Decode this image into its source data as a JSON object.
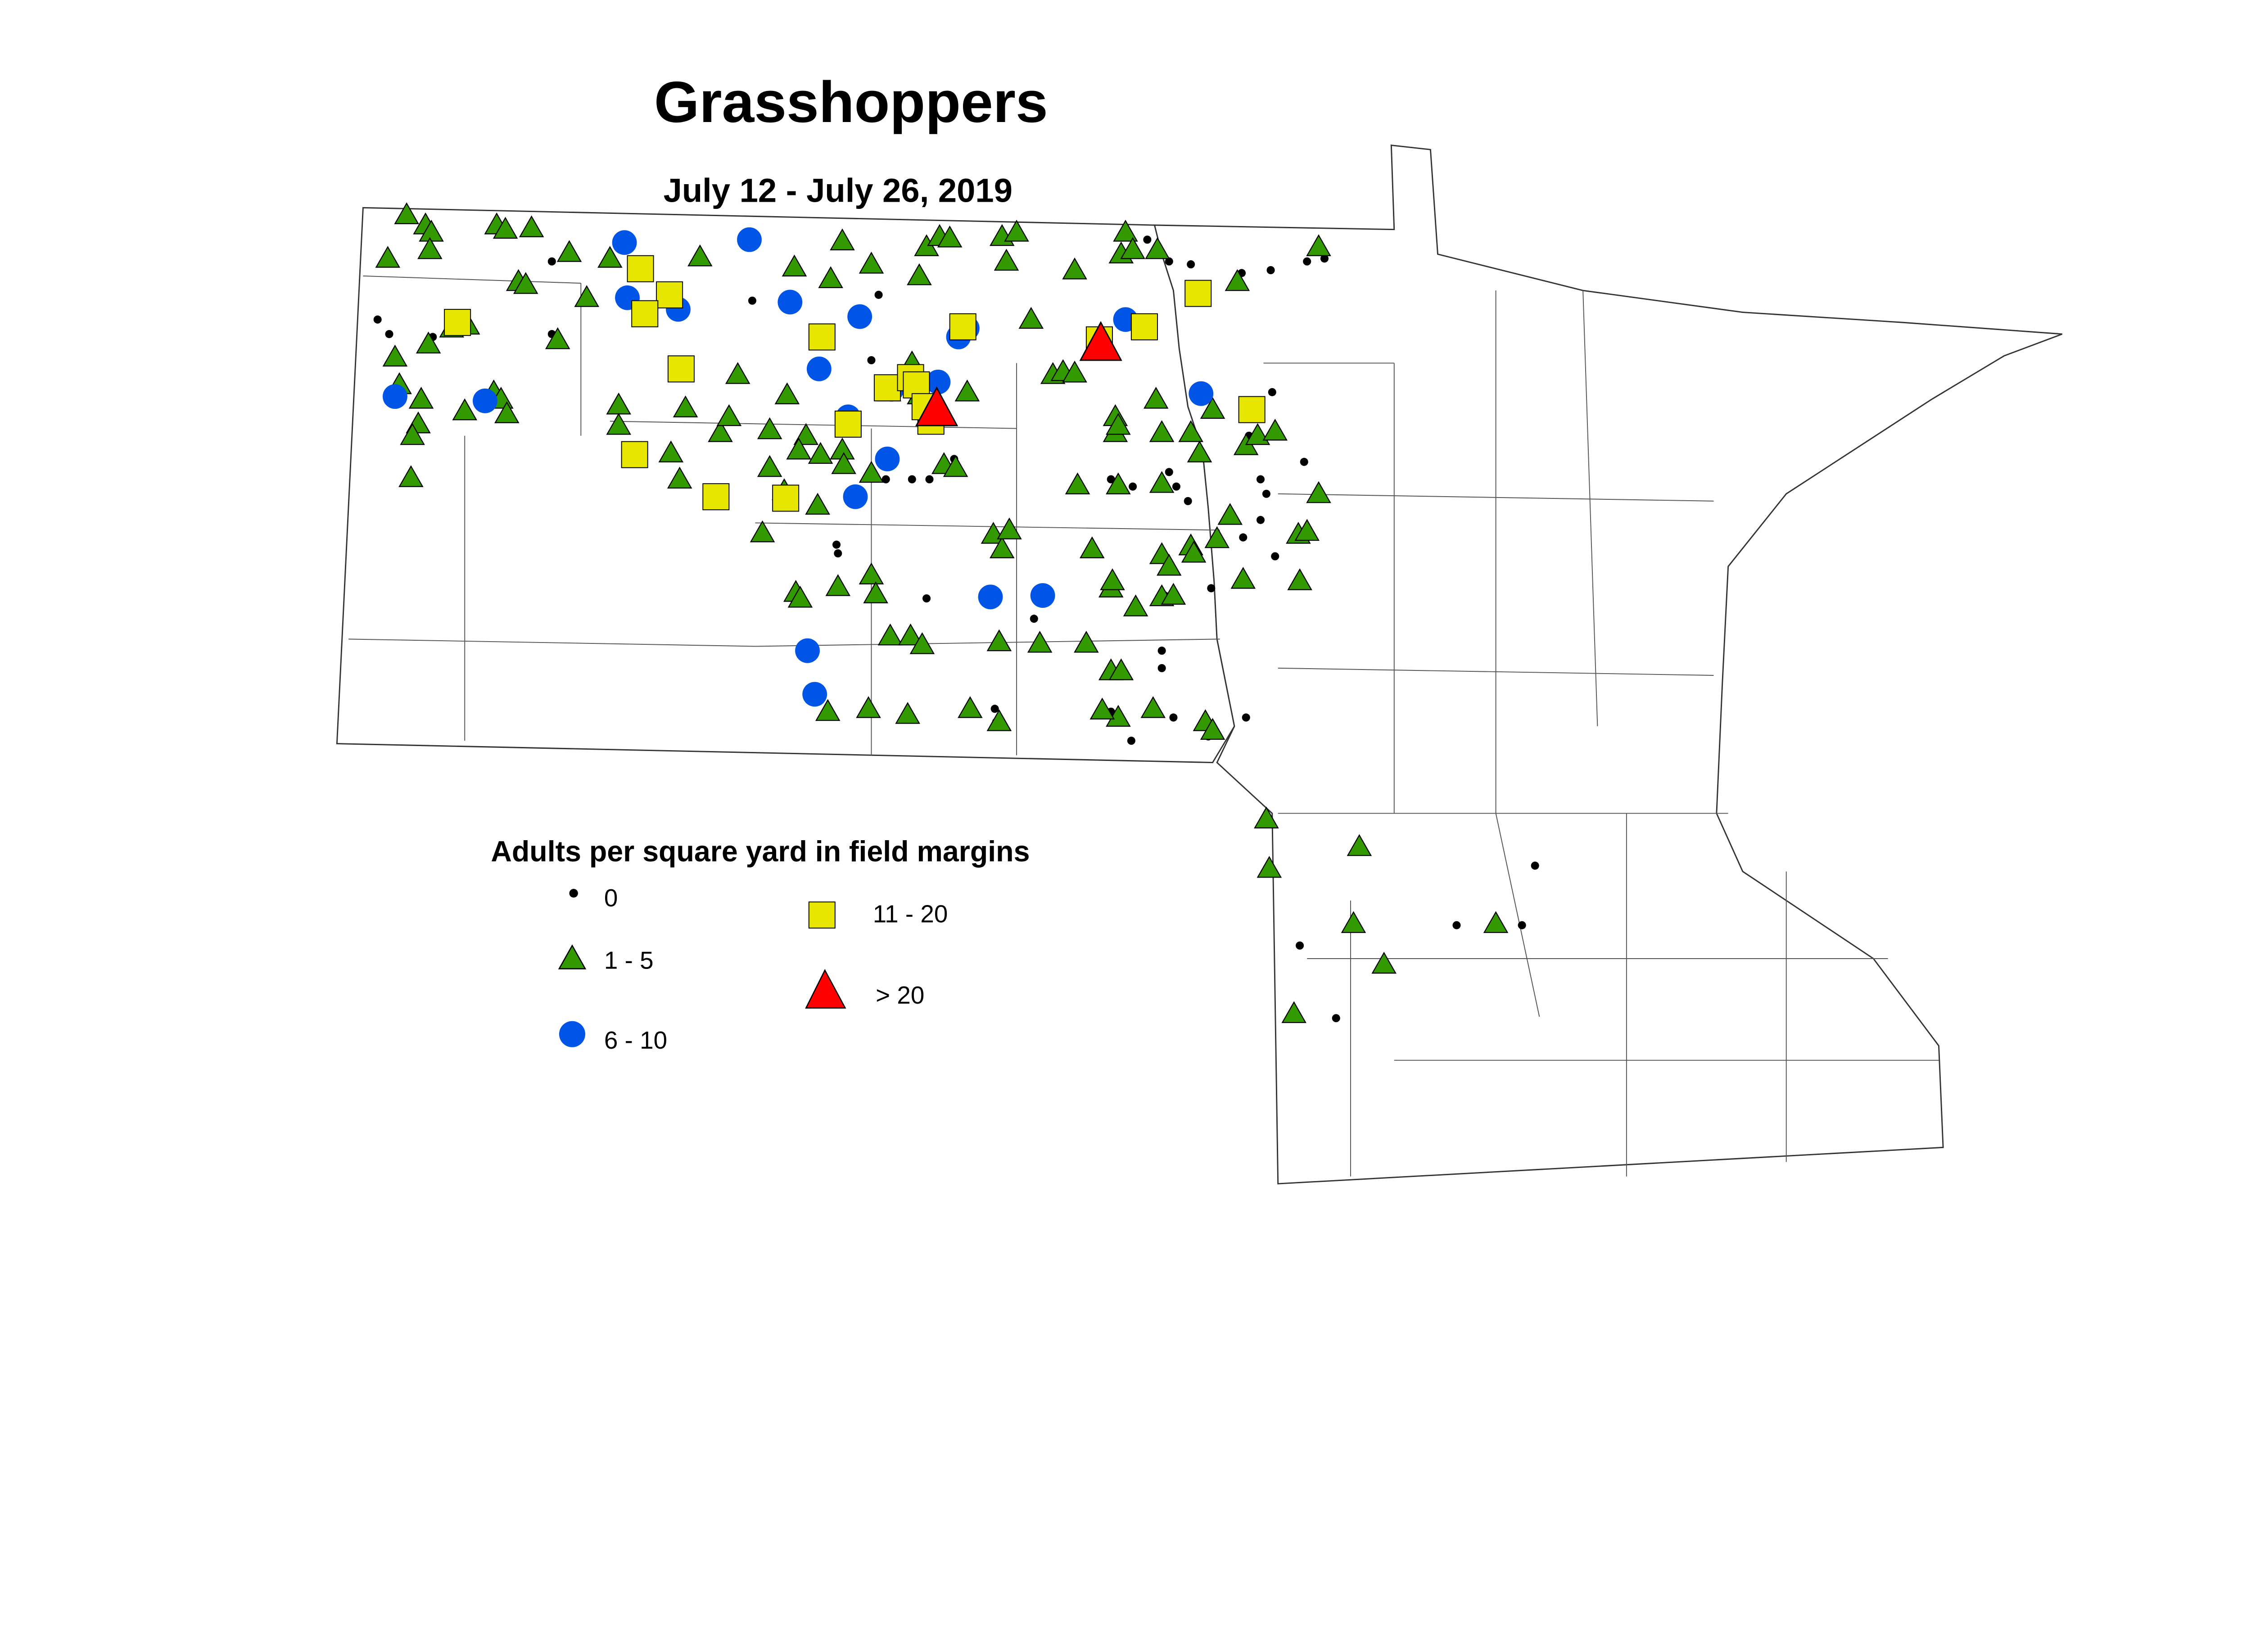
{
  "title": "Grasshoppers",
  "subtitle": "July 12 - July 26, 2019",
  "legend": {
    "title": "Adults per square yard in field margins",
    "items": [
      {
        "label": "0",
        "shape": "dot",
        "color": "#000000"
      },
      {
        "label": "1 - 5",
        "shape": "triangle",
        "color": "#339900"
      },
      {
        "label": "6 - 10",
        "shape": "circle",
        "color": "#0055e6"
      },
      {
        "label": "11 - 20",
        "shape": "square",
        "color": "#e6e600"
      },
      {
        "label": "> 20",
        "shape": "triangle-large",
        "color": "#ff0000"
      }
    ]
  },
  "colors": {
    "zero": "#000000",
    "low": "#339900",
    "mid": "#0055e6",
    "high": "#e6e600",
    "very_high": "#ff0000"
  }
}
